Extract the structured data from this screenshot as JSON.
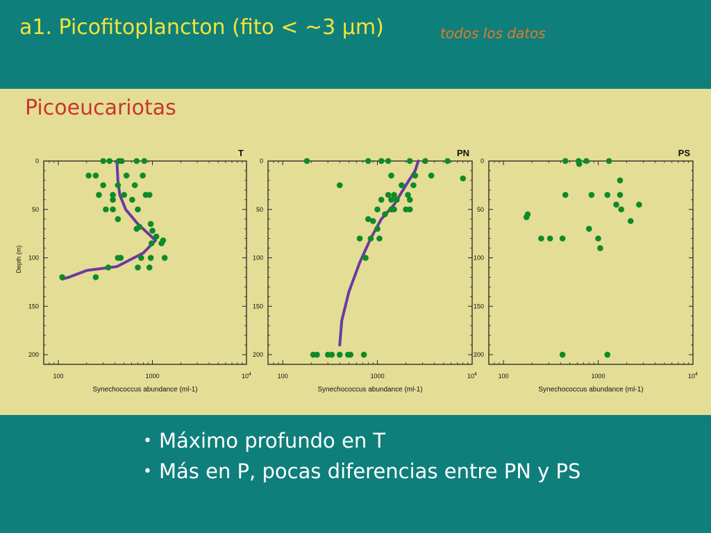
{
  "header": {
    "title": "a1. Picofitoplancton (fito < ~3 µm)",
    "subtitle": "todos los datos"
  },
  "section_title": "Picoeucariotas",
  "bullets": [
    {
      "symbol": "•",
      "text": "Máximo profundo en T"
    },
    {
      "symbol": "•",
      "text": "Más en P, pocas diferencias entre PN y PS"
    }
  ],
  "colors": {
    "header_bg": "#0f7f7b",
    "panel_bg": "#e4dd96",
    "title": "#f4e33a",
    "subtitle": "#e8792a",
    "section_title": "#c8352d",
    "points": "#0e8a28",
    "profile_line": "#6a3a9e"
  },
  "chart_data": [
    {
      "type": "scatter",
      "title": "T",
      "xlabel": "Synechococcus abundance (ml-1)",
      "ylabel": "Depth (m)",
      "xscale": "log",
      "xlim": [
        70,
        10000
      ],
      "ylim": [
        0,
        210
      ],
      "y_inverted": true,
      "x_ticks": [
        {
          "value": 100,
          "label": "100"
        },
        {
          "value": 1000,
          "label": "1000"
        },
        {
          "value": 10000,
          "label": "10",
          "sup": "4"
        }
      ],
      "y_ticks": [
        {
          "value": 0,
          "label": "0"
        },
        {
          "value": 50,
          "label": "50"
        },
        {
          "value": 100,
          "label": "100"
        },
        {
          "value": 150,
          "label": "150"
        },
        {
          "value": 200,
          "label": "200"
        }
      ],
      "points": [
        {
          "x": 300,
          "y": 0
        },
        {
          "x": 350,
          "y": 0
        },
        {
          "x": 440,
          "y": 0
        },
        {
          "x": 470,
          "y": 0
        },
        {
          "x": 680,
          "y": 0
        },
        {
          "x": 820,
          "y": 0
        },
        {
          "x": 210,
          "y": 15
        },
        {
          "x": 250,
          "y": 15
        },
        {
          "x": 530,
          "y": 15
        },
        {
          "x": 790,
          "y": 15
        },
        {
          "x": 300,
          "y": 25
        },
        {
          "x": 430,
          "y": 25
        },
        {
          "x": 650,
          "y": 25
        },
        {
          "x": 270,
          "y": 35
        },
        {
          "x": 380,
          "y": 35
        },
        {
          "x": 500,
          "y": 35
        },
        {
          "x": 850,
          "y": 35
        },
        {
          "x": 930,
          "y": 35
        },
        {
          "x": 380,
          "y": 40
        },
        {
          "x": 610,
          "y": 40
        },
        {
          "x": 320,
          "y": 50
        },
        {
          "x": 380,
          "y": 50
        },
        {
          "x": 700,
          "y": 50
        },
        {
          "x": 430,
          "y": 60
        },
        {
          "x": 960,
          "y": 65
        },
        {
          "x": 730,
          "y": 68
        },
        {
          "x": 680,
          "y": 70
        },
        {
          "x": 1000,
          "y": 72
        },
        {
          "x": 1100,
          "y": 78
        },
        {
          "x": 1300,
          "y": 82
        },
        {
          "x": 980,
          "y": 85
        },
        {
          "x": 1250,
          "y": 85
        },
        {
          "x": 430,
          "y": 100
        },
        {
          "x": 460,
          "y": 100
        },
        {
          "x": 760,
          "y": 100
        },
        {
          "x": 960,
          "y": 100
        },
        {
          "x": 1350,
          "y": 100
        },
        {
          "x": 340,
          "y": 110
        },
        {
          "x": 700,
          "y": 110
        },
        {
          "x": 930,
          "y": 110
        },
        {
          "x": 110,
          "y": 120
        },
        {
          "x": 250,
          "y": 120
        }
      ],
      "line": [
        {
          "x": 420,
          "y": 0
        },
        {
          "x": 430,
          "y": 20
        },
        {
          "x": 450,
          "y": 35
        },
        {
          "x": 520,
          "y": 50
        },
        {
          "x": 700,
          "y": 65
        },
        {
          "x": 1080,
          "y": 82
        },
        {
          "x": 800,
          "y": 95
        },
        {
          "x": 420,
          "y": 109
        },
        {
          "x": 200,
          "y": 113
        },
        {
          "x": 130,
          "y": 120
        },
        {
          "x": 110,
          "y": 122
        }
      ]
    },
    {
      "type": "scatter",
      "title": "PN",
      "xlabel": "Synechococcus abundance (ml-1)",
      "ylabel": "",
      "xscale": "log",
      "xlim": [
        70,
        10000
      ],
      "ylim": [
        0,
        210
      ],
      "y_inverted": true,
      "x_ticks": [
        {
          "value": 100,
          "label": "100"
        },
        {
          "value": 1000,
          "label": "1000"
        },
        {
          "value": 10000,
          "label": "10",
          "sup": "4"
        }
      ],
      "y_ticks": [
        {
          "value": 0,
          "label": "0"
        },
        {
          "value": 50,
          "label": "50"
        },
        {
          "value": 100,
          "label": "100"
        },
        {
          "value": 150,
          "label": "150"
        },
        {
          "value": 200,
          "label": "200"
        }
      ],
      "points": [
        {
          "x": 180,
          "y": 0
        },
        {
          "x": 800,
          "y": 0
        },
        {
          "x": 1100,
          "y": 0
        },
        {
          "x": 1300,
          "y": 0
        },
        {
          "x": 2200,
          "y": 0
        },
        {
          "x": 3200,
          "y": 0
        },
        {
          "x": 5500,
          "y": 0
        },
        {
          "x": 1400,
          "y": 15
        },
        {
          "x": 2500,
          "y": 15
        },
        {
          "x": 3700,
          "y": 15
        },
        {
          "x": 400,
          "y": 25
        },
        {
          "x": 1800,
          "y": 25
        },
        {
          "x": 2400,
          "y": 25
        },
        {
          "x": 8000,
          "y": 18
        },
        {
          "x": 1300,
          "y": 35
        },
        {
          "x": 1500,
          "y": 35
        },
        {
          "x": 2100,
          "y": 35
        },
        {
          "x": 1100,
          "y": 40
        },
        {
          "x": 1400,
          "y": 40
        },
        {
          "x": 1600,
          "y": 40
        },
        {
          "x": 2200,
          "y": 40
        },
        {
          "x": 1000,
          "y": 50
        },
        {
          "x": 1400,
          "y": 50
        },
        {
          "x": 1500,
          "y": 50
        },
        {
          "x": 2000,
          "y": 50
        },
        {
          "x": 2200,
          "y": 50
        },
        {
          "x": 1200,
          "y": 55
        },
        {
          "x": 800,
          "y": 60
        },
        {
          "x": 900,
          "y": 62
        },
        {
          "x": 1000,
          "y": 70
        },
        {
          "x": 650,
          "y": 80
        },
        {
          "x": 850,
          "y": 80
        },
        {
          "x": 1050,
          "y": 80
        },
        {
          "x": 750,
          "y": 100
        },
        {
          "x": 210,
          "y": 200
        },
        {
          "x": 230,
          "y": 200
        },
        {
          "x": 300,
          "y": 200
        },
        {
          "x": 330,
          "y": 200
        },
        {
          "x": 400,
          "y": 200
        },
        {
          "x": 490,
          "y": 200
        },
        {
          "x": 520,
          "y": 200
        },
        {
          "x": 720,
          "y": 200
        }
      ],
      "line": [
        {
          "x": 2700,
          "y": 0
        },
        {
          "x": 2500,
          "y": 10
        },
        {
          "x": 2000,
          "y": 25
        },
        {
          "x": 1500,
          "y": 45
        },
        {
          "x": 1100,
          "y": 60
        },
        {
          "x": 850,
          "y": 80
        },
        {
          "x": 650,
          "y": 105
        },
        {
          "x": 500,
          "y": 135
        },
        {
          "x": 420,
          "y": 165
        },
        {
          "x": 400,
          "y": 190
        }
      ]
    },
    {
      "type": "scatter",
      "title": "PS",
      "xlabel": "Synechococcus abundance (ml-1)",
      "ylabel": "",
      "xscale": "log",
      "xlim": [
        70,
        10000
      ],
      "ylim": [
        0,
        210
      ],
      "y_inverted": true,
      "x_ticks": [
        {
          "value": 100,
          "label": "100"
        },
        {
          "value": 1000,
          "label": "1000"
        },
        {
          "value": 10000,
          "label": "10",
          "sup": "4"
        }
      ],
      "y_ticks": [
        {
          "value": 0,
          "label": "0"
        },
        {
          "value": 50,
          "label": "50"
        },
        {
          "value": 100,
          "label": "100"
        },
        {
          "value": 150,
          "label": "150"
        },
        {
          "value": 200,
          "label": "200"
        }
      ],
      "points": [
        {
          "x": 450,
          "y": 0
        },
        {
          "x": 620,
          "y": 0
        },
        {
          "x": 750,
          "y": 0
        },
        {
          "x": 1300,
          "y": 0
        },
        {
          "x": 630,
          "y": 3
        },
        {
          "x": 1700,
          "y": 20
        },
        {
          "x": 450,
          "y": 35
        },
        {
          "x": 850,
          "y": 35
        },
        {
          "x": 1250,
          "y": 35
        },
        {
          "x": 1700,
          "y": 35
        },
        {
          "x": 1550,
          "y": 45
        },
        {
          "x": 2700,
          "y": 45
        },
        {
          "x": 1750,
          "y": 50
        },
        {
          "x": 180,
          "y": 55
        },
        {
          "x": 175,
          "y": 58
        },
        {
          "x": 2200,
          "y": 62
        },
        {
          "x": 800,
          "y": 70
        },
        {
          "x": 250,
          "y": 80
        },
        {
          "x": 310,
          "y": 80
        },
        {
          "x": 420,
          "y": 80
        },
        {
          "x": 1000,
          "y": 80
        },
        {
          "x": 1050,
          "y": 90
        },
        {
          "x": 420,
          "y": 200
        },
        {
          "x": 1250,
          "y": 200
        }
      ],
      "line": []
    }
  ]
}
